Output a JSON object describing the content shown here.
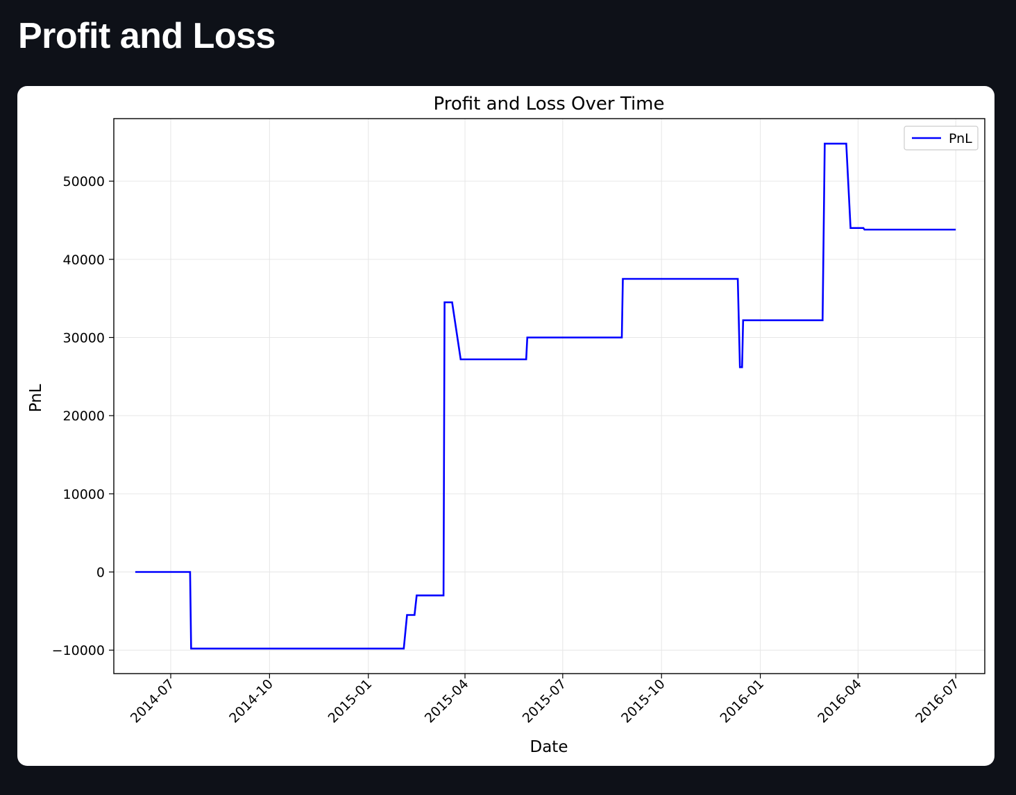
{
  "page": {
    "title": "Profit and Loss"
  },
  "colors": {
    "background": "#0e1118",
    "card": "#ffffff",
    "line": "#0000ff",
    "grid": "#e6e6e6"
  },
  "chart_data": {
    "type": "line",
    "title": "Profit and Loss Over Time",
    "xlabel": "Date",
    "ylabel": "PnL",
    "legend": {
      "position": "top-right",
      "entries": [
        "PnL"
      ]
    },
    "grid": true,
    "xlim": [
      "2014-05-09",
      "2016-07-28"
    ],
    "ylim": [
      -13000,
      58000
    ],
    "x_ticks": [
      {
        "date": "2014-07-01",
        "label": "2014-07"
      },
      {
        "date": "2014-10-01",
        "label": "2014-10"
      },
      {
        "date": "2015-01-01",
        "label": "2015-01"
      },
      {
        "date": "2015-04-01",
        "label": "2015-04"
      },
      {
        "date": "2015-07-01",
        "label": "2015-07"
      },
      {
        "date": "2015-10-01",
        "label": "2015-10"
      },
      {
        "date": "2016-01-01",
        "label": "2016-01"
      },
      {
        "date": "2016-04-01",
        "label": "2016-04"
      },
      {
        "date": "2016-07-01",
        "label": "2016-07"
      }
    ],
    "y_ticks": [
      {
        "value": -10000,
        "label": "−10000"
      },
      {
        "value": 0,
        "label": "0"
      },
      {
        "value": 10000,
        "label": "10000"
      },
      {
        "value": 20000,
        "label": "20000"
      },
      {
        "value": 30000,
        "label": "30000"
      },
      {
        "value": 40000,
        "label": "40000"
      },
      {
        "value": 50000,
        "label": "50000"
      }
    ],
    "series": [
      {
        "name": "PnL",
        "color": "#0000ff",
        "points": [
          [
            "2014-05-29",
            0
          ],
          [
            "2014-07-19",
            0
          ],
          [
            "2014-07-20",
            -9800
          ],
          [
            "2015-02-03",
            -9800
          ],
          [
            "2015-02-06",
            -5500
          ],
          [
            "2015-02-13",
            -5500
          ],
          [
            "2015-02-15",
            -3000
          ],
          [
            "2015-03-12",
            -3000
          ],
          [
            "2015-03-13",
            34500
          ],
          [
            "2015-03-20",
            34500
          ],
          [
            "2015-03-28",
            27200
          ],
          [
            "2015-05-28",
            27200
          ],
          [
            "2015-05-29",
            30000
          ],
          [
            "2015-08-25",
            30000
          ],
          [
            "2015-08-26",
            37500
          ],
          [
            "2015-12-11",
            37500
          ],
          [
            "2015-12-13",
            26200
          ],
          [
            "2015-12-15",
            26200
          ],
          [
            "2015-12-16",
            32200
          ],
          [
            "2016-02-28",
            32200
          ],
          [
            "2016-03-01",
            54800
          ],
          [
            "2016-03-21",
            54800
          ],
          [
            "2016-03-25",
            44000
          ],
          [
            "2016-04-06",
            44000
          ],
          [
            "2016-04-07",
            43800
          ],
          [
            "2016-07-01",
            43800
          ]
        ]
      }
    ]
  }
}
